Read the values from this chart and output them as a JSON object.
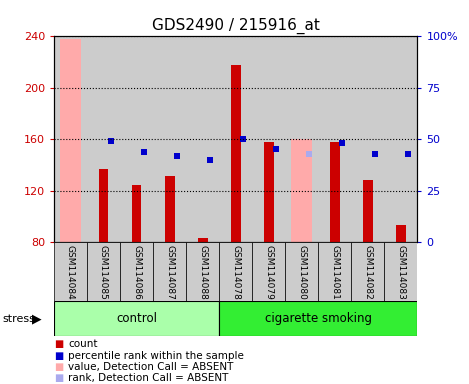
{
  "title": "GDS2490 / 215916_at",
  "samples": [
    "GSM114084",
    "GSM114085",
    "GSM114086",
    "GSM114087",
    "GSM114088",
    "GSM114078",
    "GSM114079",
    "GSM114080",
    "GSM114081",
    "GSM114082",
    "GSM114083"
  ],
  "groups": [
    {
      "name": "control",
      "indices": [
        0,
        1,
        2,
        3,
        4
      ],
      "color": "#aaffaa"
    },
    {
      "name": "cigarette smoking",
      "indices": [
        5,
        6,
        7,
        8,
        9,
        10
      ],
      "color": "#33ee33"
    }
  ],
  "red_bar_values": [
    null,
    137,
    124,
    131,
    83,
    218,
    158,
    null,
    158,
    128,
    93
  ],
  "pink_bar_values": [
    238,
    null,
    null,
    null,
    null,
    null,
    null,
    160,
    null,
    null,
    null
  ],
  "blue_square_values": [
    null,
    49,
    44,
    42,
    40,
    50,
    45,
    null,
    48,
    43,
    43
  ],
  "light_blue_values": [
    null,
    null,
    null,
    null,
    null,
    null,
    null,
    43,
    null,
    null,
    null
  ],
  "ylim": [
    80,
    240
  ],
  "y_ticks_left": [
    80,
    120,
    160,
    200,
    240
  ],
  "y2_ticks": [
    0,
    25,
    50,
    75,
    100
  ],
  "y2_tick_positions": [
    80,
    120,
    160,
    200,
    240
  ],
  "y2_labels": [
    "0",
    "25",
    "50",
    "75",
    "100%"
  ],
  "red_color": "#cc0000",
  "pink_color": "#ffaaaa",
  "blue_color": "#0000cc",
  "light_blue_color": "#aaaaee",
  "bg_color": "#cccccc",
  "plot_bg": "#ffffff",
  "title_fontsize": 11,
  "axis_label_color_left": "#cc0000",
  "axis_label_color_right": "#0000cc",
  "legend_items": [
    {
      "color": "#cc0000",
      "label": "count"
    },
    {
      "color": "#0000cc",
      "label": "percentile rank within the sample"
    },
    {
      "color": "#ffaaaa",
      "label": "value, Detection Call = ABSENT"
    },
    {
      "color": "#aaaaee",
      "label": "rank, Detection Call = ABSENT"
    }
  ]
}
